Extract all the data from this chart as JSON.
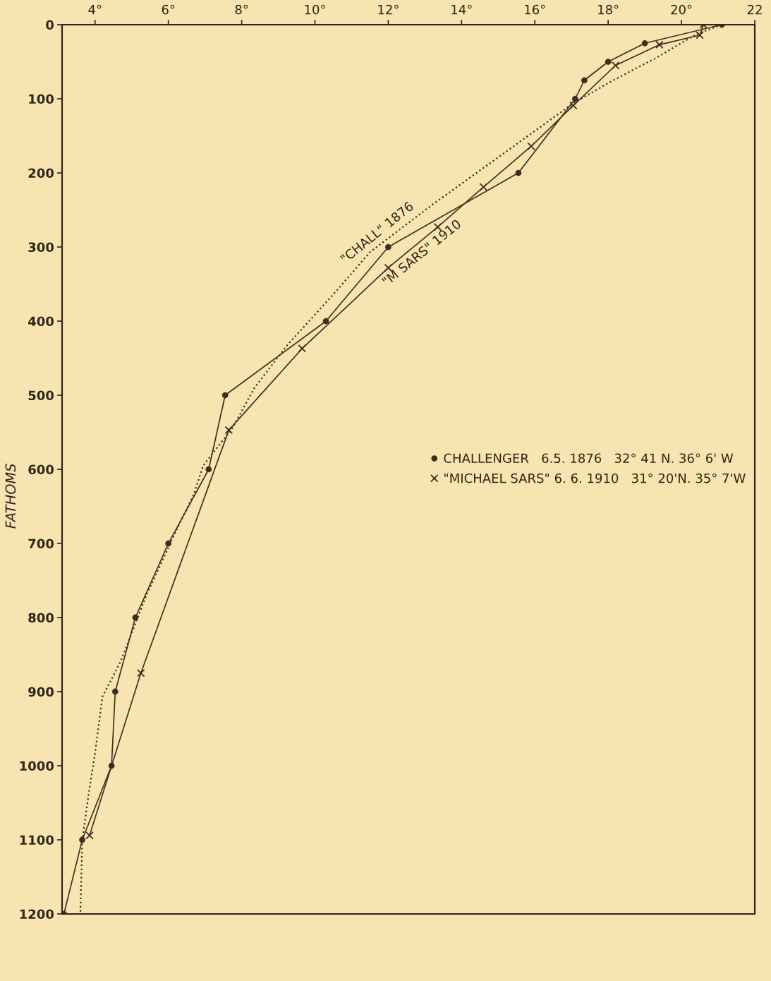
{
  "chart_data": {
    "type": "line",
    "ylabel": "FATHOMS",
    "xlim": [
      3.1,
      22
    ],
    "xticks": [
      {
        "value": 4,
        "label": "4°"
      },
      {
        "value": 6,
        "label": "6°"
      },
      {
        "value": 8,
        "label": "8°"
      },
      {
        "value": 10,
        "label": "10°"
      },
      {
        "value": 12,
        "label": "12°"
      },
      {
        "value": 14,
        "label": "14°"
      },
      {
        "value": 16,
        "label": "16°"
      },
      {
        "value": 18,
        "label": "18°"
      },
      {
        "value": 20,
        "label": "20°"
      },
      22
    ],
    "ylim": [
      1200,
      0
    ],
    "yticks": [
      0,
      100,
      200,
      300,
      400,
      500,
      600,
      700,
      800,
      900,
      1000,
      1100,
      1200
    ],
    "legend": "right",
    "annotations": [
      {
        "text": "\"CHALL\" 1876",
        "x": 12.0,
        "y": 300
      },
      {
        "text": "\"M SARS\" 1910",
        "x": 13.35,
        "y": 273
      }
    ],
    "series": [
      {
        "name": "CHALLENGER   6.5. 1876   32° 41 N. 36° 6' W",
        "color": "#3a3020",
        "marker": "circle",
        "line_style": "solid",
        "x": [
          21.1,
          19.0,
          18.0,
          17.35,
          17.1,
          15.55,
          12.0,
          10.3,
          7.55,
          7.1,
          6.0,
          5.1,
          4.55,
          4.45,
          3.65,
          3.15
        ],
        "values": [
          0,
          25,
          50,
          75,
          100,
          200,
          300,
          400,
          500,
          600,
          700,
          800,
          900,
          1000,
          1100,
          1200
        ]
      },
      {
        "name": "\"MICHAEL SARS\" 6. 6. 1910   31° 20'N. 35° 7'W",
        "color": "#3a3020",
        "marker": "cross",
        "line_style": "solid",
        "x": [
          20.6,
          20.5,
          19.4,
          18.2,
          17.05,
          15.9,
          14.6,
          13.35,
          12.0,
          9.65,
          7.65,
          5.25,
          3.85
        ],
        "values": [
          0,
          14,
          27,
          55,
          109,
          164,
          219,
          273,
          328,
          437,
          547,
          875,
          1094
        ]
      },
      {
        "color": "#3a3020",
        "marker": "none",
        "line_style": "dotted",
        "x": [
          21.1,
          20.4,
          19.3,
          18.1,
          17.05,
          13.2,
          11.5,
          10.5,
          9.25,
          8.35,
          7.75,
          6.95,
          6.7,
          6.2,
          5.4,
          4.7,
          4.2,
          4.0,
          3.85,
          3.65,
          3.6
        ],
        "values": [
          0,
          13,
          45,
          76,
          106,
          243,
          307,
          364,
          432,
          490,
          544,
          595,
          633,
          684,
          770,
          859,
          907,
          983,
          1030,
          1100,
          1200
        ]
      }
    ]
  }
}
